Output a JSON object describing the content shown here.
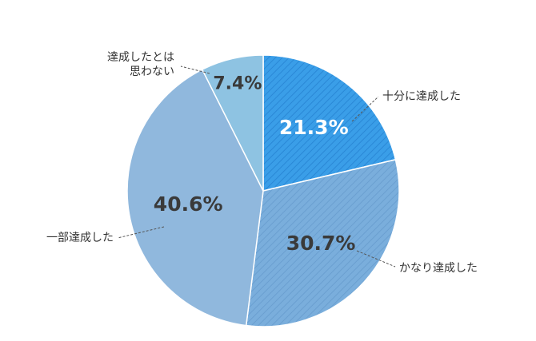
{
  "chart_data": {
    "type": "pie",
    "start_angle_deg": 0,
    "direction": "clockwise",
    "slices": [
      {
        "label": "十分に達成した",
        "value": 21.3,
        "display": "21.3%",
        "color": "#3a9ee8",
        "pattern": "hatch"
      },
      {
        "label": "かなり達成した",
        "value": 30.7,
        "display": "30.7%",
        "color": "#7aaedc",
        "pattern": "hatch"
      },
      {
        "label": "一部達成した",
        "value": 40.6,
        "display": "40.6%",
        "color": "#90b8dd",
        "pattern": "solid"
      },
      {
        "label_lines": [
          "達成したとは",
          "思わない"
        ],
        "value": 7.4,
        "display": "7.4%",
        "color": "#8ec3e2",
        "pattern": "solid"
      }
    ]
  }
}
